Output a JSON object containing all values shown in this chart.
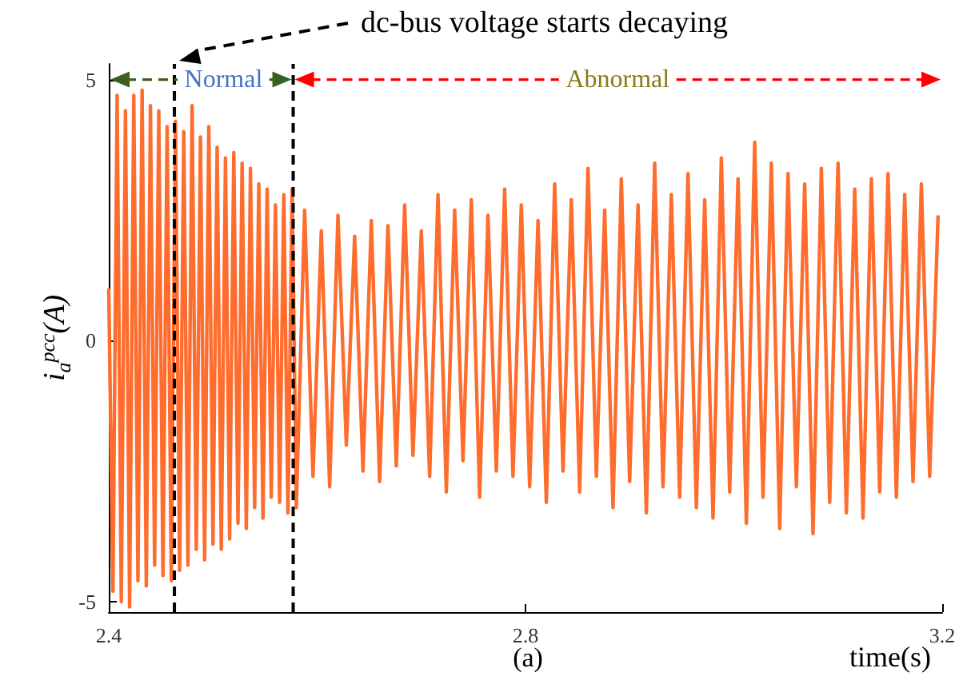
{
  "chart_data": {
    "type": "line",
    "xlabel": "time(s)",
    "ylabel": "i$_{a}$$^{pcc}$(A)",
    "xlim": [
      2.4,
      3.2
    ],
    "xticks": [
      2.4,
      2.8,
      3.2
    ],
    "ylim": [
      -5.2,
      5.3
    ],
    "yticks": [
      -5,
      0,
      5
    ],
    "line_style": "solid",
    "series": [
      {
        "color": "#ff6d2e",
        "x": [
          2.4,
          2.404,
          2.408,
          2.412,
          2.416,
          2.42,
          2.424,
          2.428,
          2.432,
          2.436,
          2.44,
          2.444,
          2.448,
          2.452,
          2.456,
          2.46,
          2.464,
          2.468,
          2.472,
          2.476,
          2.48,
          2.484,
          2.488,
          2.492,
          2.496,
          2.5,
          2.504,
          2.508,
          2.512,
          2.516,
          2.52,
          2.524,
          2.528,
          2.532,
          2.536,
          2.54,
          2.544,
          2.548,
          2.552,
          2.556,
          2.56,
          2.564,
          2.568,
          2.572,
          2.576,
          2.58,
          2.588,
          2.596,
          2.604,
          2.612,
          2.62,
          2.628,
          2.636,
          2.644,
          2.652,
          2.66,
          2.668,
          2.676,
          2.684,
          2.692,
          2.7,
          2.708,
          2.716,
          2.724,
          2.732,
          2.74,
          2.748,
          2.756,
          2.764,
          2.772,
          2.78,
          2.788,
          2.796,
          2.804,
          2.812,
          2.82,
          2.828,
          2.836,
          2.844,
          2.852,
          2.86,
          2.868,
          2.876,
          2.884,
          2.892,
          2.9,
          2.908,
          2.916,
          2.924,
          2.932,
          2.94,
          2.948,
          2.956,
          2.964,
          2.972,
          2.98,
          2.988,
          2.996,
          3.004,
          3.012,
          3.02,
          3.028,
          3.036,
          3.044,
          3.052,
          3.06,
          3.068,
          3.076,
          3.084,
          3.092,
          3.1,
          3.108,
          3.116,
          3.124,
          3.132,
          3.14,
          3.148,
          3.156,
          3.164,
          3.172,
          3.18,
          3.188,
          3.196
        ],
        "values": [
          1.0,
          -4.8,
          4.7,
          -5.0,
          4.4,
          -5.1,
          4.7,
          -4.6,
          4.8,
          -4.7,
          4.5,
          -4.3,
          4.4,
          -4.5,
          4.1,
          -4.6,
          4.2,
          -4.4,
          4.0,
          -4.3,
          4.5,
          -4.0,
          3.9,
          -4.2,
          4.1,
          -3.9,
          3.7,
          -4.0,
          3.5,
          -3.8,
          3.6,
          -3.5,
          3.4,
          -3.6,
          3.3,
          -3.2,
          3.0,
          -3.4,
          2.9,
          -3.0,
          2.6,
          -3.1,
          2.8,
          -3.3,
          2.9,
          -3.2,
          2.5,
          -2.6,
          2.1,
          -2.8,
          2.4,
          -2.0,
          2.0,
          -2.5,
          2.3,
          -2.7,
          2.2,
          -2.4,
          2.6,
          -2.2,
          2.1,
          -2.6,
          2.8,
          -2.9,
          2.5,
          -2.3,
          2.7,
          -3.0,
          2.4,
          -2.5,
          2.9,
          -2.6,
          2.6,
          -2.8,
          2.3,
          -3.1,
          3.0,
          -2.5,
          2.7,
          -2.9,
          3.3,
          -2.6,
          2.5,
          -3.2,
          3.1,
          -2.7,
          2.6,
          -3.3,
          3.4,
          -2.8,
          2.8,
          -3.0,
          3.2,
          -3.2,
          2.7,
          -3.4,
          3.5,
          -2.9,
          3.1,
          -3.5,
          3.8,
          -3.0,
          3.4,
          -3.6,
          3.2,
          -2.8,
          3.0,
          -3.7,
          3.3,
          -3.1,
          3.4,
          -3.3,
          2.9,
          -3.4,
          3.1,
          -2.9,
          3.2,
          -3.0,
          2.8,
          -2.7,
          3.0,
          -2.6,
          2.4
        ]
      }
    ],
    "ref_lines": [
      {
        "axis": "x",
        "value": 2.463,
        "color": "#000000",
        "line_style": "dashed"
      },
      {
        "axis": "x",
        "value": 2.577,
        "color": "#000000",
        "line_style": "dashed"
      }
    ],
    "annotations": [
      "dc-bus voltage starts decaying",
      "Normal",
      "Abnormal",
      "(a)"
    ]
  }
}
